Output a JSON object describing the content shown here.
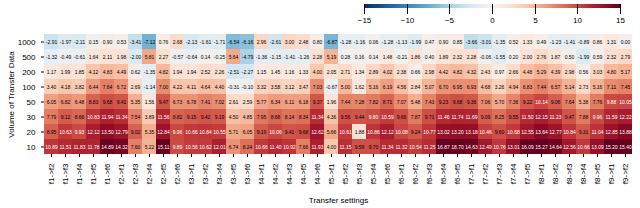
{
  "chart_data": {
    "type": "heatmap",
    "xlabel": "Transfer settings",
    "ylabel": "Volume of Transfer Data",
    "x": [
      "f1->f2",
      "f1->f3",
      "f1->f4",
      "f1->f5",
      "f1->f6",
      "f2->f1",
      "f2->f3",
      "f2->f4",
      "f2->f5",
      "f2->f6",
      "f3->f1",
      "f3->f2",
      "f3->f4",
      "f3->f5",
      "f3->f6",
      "f4->f1",
      "f4->f2",
      "f4->f3",
      "f4->f5",
      "f4->f6",
      "f5->f1",
      "f5->f2",
      "f5->f3",
      "f5->f4",
      "f5->f6",
      "f6->f1",
      "f6->f2",
      "f6->f3",
      "f6->f4",
      "f6->f5",
      "f7->f1",
      "f7->f2",
      "f7->f3",
      "f7->f4",
      "f7->f5",
      "f8->f1",
      "f8->f2",
      "f8->f3",
      "f8->f4",
      "f8->f5",
      "f9->f1",
      "f9->f2"
    ],
    "y": [
      "1000",
      "500",
      "200",
      "100",
      "50",
      "30",
      "20",
      "10"
    ],
    "values": [
      [
        -2.91,
        -1.97,
        -2.11,
        0.15,
        0.9,
        0.53,
        -3.41,
        -7.12,
        0.76,
        2.68,
        -2.13,
        -1.61,
        -1.71,
        -6.54,
        -6.16,
        2.96,
        -2.61,
        3.0,
        2.48,
        0.8,
        -6.87,
        -1.28,
        -1.16,
        0.06,
        -1.28,
        -1.13,
        -1.99,
        0.47,
        0.9,
        0.85,
        -3.66,
        -3.01,
        -1.35,
        0.52,
        1.33,
        0.49,
        -1.23,
        -1.41,
        -0.89,
        0.86,
        1.31,
        0.0
      ],
      [
        -1.32,
        -0.49,
        -0.61,
        1.64,
        2.11,
        1.98,
        -2.0,
        5.81,
        2.27,
        -0.57,
        -0.64,
        0.14,
        -0.25,
        5.64,
        -4.79,
        -1.36,
        -1.15,
        -1.41,
        -1.26,
        2.28,
        5.19,
        0.28,
        0.16,
        0.14,
        1.48,
        -0.21,
        1.86,
        0.4,
        1.89,
        2.32,
        2.28,
        -0.06,
        -1.55,
        0.2,
        2.0,
        2.76,
        1.87,
        0.5,
        -1.99,
        0.59,
        2.32,
        2.79
      ],
      [
        1.17,
        1.99,
        1.85,
        4.12,
        4.83,
        4.49,
        0.62,
        -1.35,
        4.82,
        1.94,
        1.94,
        2.52,
        2.26,
        -2.51,
        -2.27,
        1.15,
        1.45,
        1.16,
        1.33,
        4.0,
        2.05,
        2.71,
        1.34,
        2.89,
        4.02,
        2.38,
        0.66,
        2.98,
        4.42,
        4.82,
        4.32,
        2.43,
        0.97,
        2.66,
        4.48,
        5.29,
        4.39,
        2.98,
        0.56,
        3.03,
        4.8,
        5.17
      ],
      [
        3.4,
        4.18,
        3.82,
        6.44,
        7.64,
        6.72,
        2.69,
        -1.14,
        7.0,
        4.22,
        4.11,
        4.64,
        4.4,
        -0.31,
        -0.1,
        3.32,
        3.58,
        3.12,
        3.47,
        7.03,
        -0.67,
        5.0,
        1.62,
        5.16,
        6.19,
        4.56,
        2.84,
        5.07,
        6.7,
        6.95,
        6.93,
        4.68,
        3.26,
        4.94,
        6.83,
        7.44,
        6.57,
        5.14,
        2.73,
        5.16,
        7.11,
        7.45
      ],
      [
        6.05,
        6.82,
        6.48,
        8.83,
        9.68,
        9.41,
        5.35,
        1.56,
        9.47,
        6.73,
        6.78,
        7.41,
        7.02,
        2.61,
        2.59,
        5.77,
        6.34,
        6.11,
        6.18,
        9.37,
        1.96,
        7.44,
        7.28,
        7.82,
        8.71,
        7.07,
        5.48,
        7.43,
        9.23,
        9.68,
        9.36,
        7.06,
        5.7,
        7.36,
        9.22,
        10.14,
        9.06,
        7.64,
        5.38,
        7.76,
        9.88,
        10.05
      ],
      [
        7.79,
        9.12,
        8.66,
        10.83,
        11.94,
        11.34,
        7.54,
        3.89,
        11.56,
        8.82,
        9.15,
        9.42,
        9.19,
        4.5,
        4.85,
        7.95,
        8.68,
        8.14,
        8.34,
        11.34,
        4.36,
        9.56,
        9.44,
        9.8,
        10.59,
        9.66,
        7.87,
        9.71,
        11.46,
        11.74,
        11.69,
        9.09,
        8.25,
        9.55,
        11.5,
        12.15,
        11.23,
        9.47,
        7.88,
        9.96,
        11.59,
        12.22
      ],
      [
        8.95,
        10.63,
        9.93,
        12.12,
        13.5,
        12.79,
        9.02,
        5.35,
        12.84,
        9.96,
        10.66,
        10.84,
        10.55,
        5.71,
        6.05,
        9.19,
        10.06,
        9.41,
        9.68,
        12.62,
        5.66,
        10.61,
        1.88,
        10.86,
        12.12,
        10.08,
        9.24,
        10.77,
        13.02,
        13.2,
        13.18,
        10.46,
        9.6,
        10.68,
        12.55,
        13.64,
        12.77,
        10.84,
        9.31,
        11.04,
        12.85,
        13.88
      ],
      [
        10.89,
        11.51,
        11.83,
        11.78,
        14.89,
        14.32,
        7.6,
        5.22,
        15.11,
        9.89,
        10.56,
        10.62,
        12.01,
        6.74,
        8.24,
        10.66,
        11.4,
        10.92,
        7.66,
        11.93,
        4.0,
        11.15,
        9.59,
        9.7,
        11.34,
        11.32,
        10.54,
        11.25,
        16.87,
        18.7,
        14.63,
        12.49,
        10.76,
        13.01,
        16.09,
        15.27,
        14.64,
        12.56,
        10.66,
        13.09,
        15.2,
        15.4
      ]
    ],
    "value_labels": [
      [
        "-2.91",
        "-1.97",
        "-2.11",
        "0.15",
        "0.90",
        "0.53",
        "-3.41",
        "-7.12",
        "0.76",
        "2.68",
        "-2.13",
        "-1.61",
        "-1.71",
        "-6.54",
        "-6.16",
        "2.96",
        "-2.61",
        "3.00",
        "2.48",
        "0.80",
        "-6.87",
        "-1.28",
        "-1.16",
        "0.06",
        "-1.28",
        "-1.13",
        "-1.99",
        "0.47",
        "0.90",
        "0.85",
        "-3.66",
        "-3.01",
        "-1.35",
        "0.52",
        "1.33",
        "0.49",
        "-1.23",
        "-1.41",
        "-0.89",
        "0.86",
        "1.31",
        "0.00"
      ],
      [
        "-1.32",
        "-0.49",
        "-0.61",
        "1.64",
        "2.11",
        "1.98",
        "-2.00",
        "5.81",
        "2.27",
        "-0.57",
        "-0.64",
        "0.14",
        "-0.25",
        "5.64",
        "-4.79",
        "-1.36",
        "-1.15",
        "-1.41",
        "-1.26",
        "2.28",
        "5.19",
        "0.28",
        "0.16",
        "0.14",
        "1.48",
        "-0.21",
        "1.86",
        "0.40",
        "1.89",
        "2.32",
        "2.28",
        "-0.06",
        "-1.55",
        "0.20",
        "2.00",
        "2.76",
        "1.87",
        "0.50",
        "-1.99",
        "0.59",
        "2.32",
        "2.79"
      ],
      [
        "1.17",
        "1.99",
        "1.85",
        "4.12",
        "4.83",
        "4.49",
        "0.62",
        "-1.35",
        "4.82",
        "1.94",
        "1.94",
        "2.52",
        "2.26",
        "-2.51",
        "-2.27",
        "1.15",
        "1.45",
        "1.16",
        "1.33",
        "4.00",
        "2.05",
        "2.71",
        "1.34",
        "2.89",
        "4.02",
        "2.38",
        "0.66",
        "2.98",
        "4.42",
        "4.82",
        "4.32",
        "2.43",
        "0.97",
        "2.66",
        "4.48",
        "5.29",
        "4.39",
        "2.98",
        "0.56",
        "3.03",
        "4.80",
        "5.17"
      ],
      [
        "3.40",
        "4.18",
        "3.82",
        "6.44",
        "7.64",
        "6.72",
        "2.69",
        "-1.14",
        "7.00",
        "4.22",
        "4.11",
        "4.64",
        "4.40",
        "-0.31",
        "-0.10",
        "3.32",
        "3.58",
        "3.12",
        "3.47",
        "7.03",
        "-0.67",
        "5.00",
        "1.62",
        "5.16",
        "6.19",
        "4.56",
        "2.84",
        "5.07",
        "6.70",
        "6.95",
        "6.93",
        "4.68",
        "3.26",
        "4.94",
        "6.83",
        "7.44",
        "6.57",
        "5.14",
        "2.73",
        "5.16",
        "7.11",
        "7.45"
      ],
      [
        "6.05",
        "6.82",
        "6.48",
        "8.83",
        "9.68",
        "9.41",
        "5.35",
        "1.56",
        "9.47",
        "6.73",
        "6.78",
        "7.41",
        "7.02",
        "2.61",
        "2.59",
        "5.77",
        "6.34",
        "6.11",
        "6.18",
        "9.37",
        "1.96",
        "7.44",
        "7.28",
        "7.82",
        "8.71",
        "7.07",
        "5.48",
        "7.43",
        "9.23",
        "9.68",
        "9.36",
        "7.06",
        "5.70",
        "7.36",
        "9.22",
        "10.14",
        "9.06",
        "7.64",
        "5.38",
        "7.76",
        "9.88",
        "10.05"
      ],
      [
        "7.79",
        "9.12",
        "8.66",
        "10.83",
        "11.94",
        "11.34",
        "7.54",
        "3.89",
        "11.56",
        "8.82",
        "9.15",
        "9.42",
        "9.19",
        "4.50",
        "4.85",
        "7.95",
        "8.68",
        "8.14",
        "8.34",
        "11.34",
        "4.36",
        "9.56",
        "9.44",
        "9.80",
        "10.59",
        "9.66",
        "7.87",
        "9.71",
        "11.46",
        "11.74",
        "11.69",
        "9.09",
        "8.25",
        "9.55",
        "11.50",
        "12.15",
        "11.23",
        "9.47",
        "7.88",
        "9.96",
        "11.59",
        "12.22"
      ],
      [
        "8.95",
        "10.63",
        "9.93",
        "12.12",
        "13.50",
        "12.79",
        "9.02",
        "5.35",
        "12.84",
        "9.96",
        "10.66",
        "10.84",
        "10.55",
        "5.71",
        "6.05",
        "9.19",
        "10.06",
        "9.41",
        "9.68",
        "12.62",
        "5.66",
        "10.61",
        "1.88",
        "10.86",
        "12.12",
        "10.08",
        "9.24",
        "10.77",
        "13.02",
        "13.20",
        "13.18",
        "10.46",
        "9.60",
        "10.68",
        "12.55",
        "13.64",
        "12.77",
        "10.84",
        "9.31",
        "11.04",
        "12.85",
        "13.88"
      ],
      [
        "10.89",
        "11.51",
        "11.83",
        "11.78",
        "14.89",
        "14.32",
        "7.60",
        "5.22",
        "15.11",
        "9.89",
        "10.56",
        "10.62",
        "12.01",
        "6.74",
        "8.24",
        "10.66",
        "11.40",
        "10.92",
        "7.66",
        "11.93",
        "4.00",
        "11.15",
        "9.59",
        "9.70",
        "11.34",
        "11.32",
        "10.54",
        "11.25",
        "16.87",
        "18.70",
        "14.63",
        "12.49",
        "10.76",
        "13.01",
        "16.09",
        "15.27",
        "14.64",
        "12.56",
        "10.66",
        "13.09",
        "15.20",
        "15.40"
      ]
    ],
    "data_labels": true,
    "color": "RdBu_r",
    "colorbar": {
      "range": [
        -15,
        15
      ],
      "ticks": [
        -15,
        -10,
        -5,
        0,
        5,
        10,
        15
      ]
    }
  }
}
